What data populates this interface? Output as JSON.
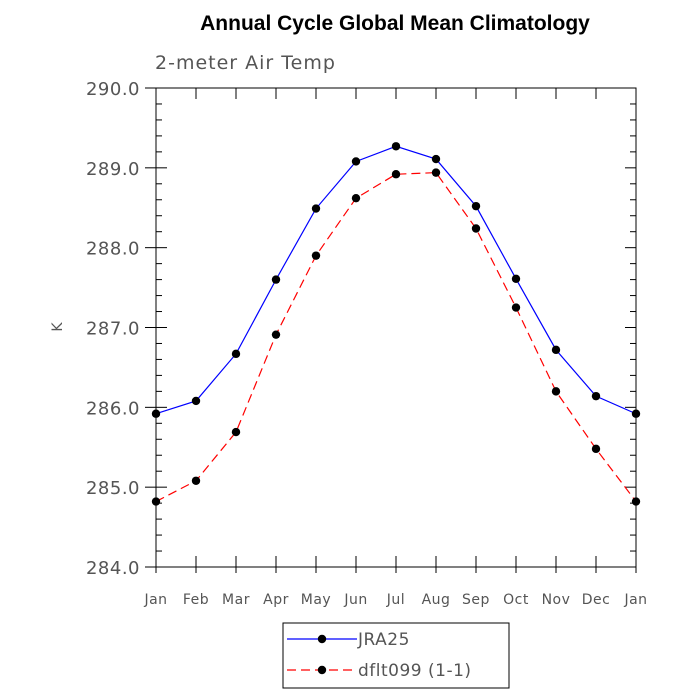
{
  "chart_data": {
    "type": "line",
    "title": "Annual Cycle Global Mean Climatology",
    "subtitle": "2-meter Air Temp",
    "xlabel": "",
    "ylabel": "K",
    "categories": [
      "Jan",
      "Feb",
      "Mar",
      "Apr",
      "May",
      "Jun",
      "Jul",
      "Aug",
      "Sep",
      "Oct",
      "Nov",
      "Dec",
      "Jan"
    ],
    "ylim": [
      284.0,
      290.0
    ],
    "yticks": [
      "284.0",
      "285.0",
      "286.0",
      "287.0",
      "288.0",
      "289.0",
      "290.0"
    ],
    "grid": false,
    "legend_position": "bottom-center",
    "series": [
      {
        "name": "JRA25",
        "color": "#0000ff",
        "dash": "solid",
        "marker": "filled-circle",
        "values": [
          285.92,
          286.08,
          286.67,
          287.6,
          288.49,
          289.08,
          289.27,
          289.11,
          288.52,
          287.61,
          286.72,
          286.14,
          285.92
        ]
      },
      {
        "name": "dflt099 (1-1)",
        "color": "#ff0000",
        "dash": "dashed",
        "marker": "filled-circle",
        "values": [
          284.82,
          285.08,
          285.69,
          286.91,
          287.9,
          288.62,
          288.92,
          288.94,
          288.24,
          287.25,
          286.2,
          285.48,
          284.82
        ]
      }
    ]
  }
}
